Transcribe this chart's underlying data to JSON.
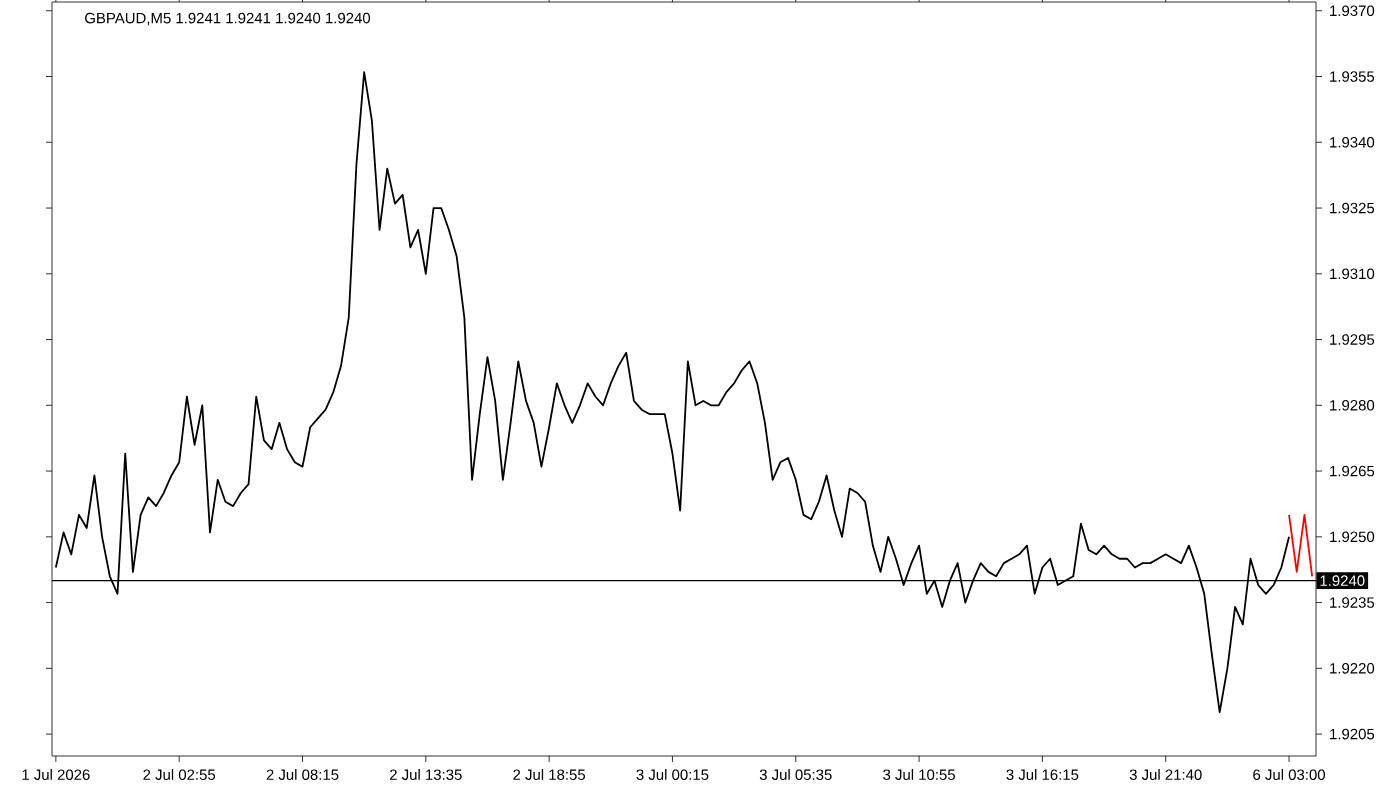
{
  "chart_data": {
    "type": "line",
    "title": "GBPAUD,M5  1.9241 1.9241 1.9240 1.9240",
    "categories": [
      "1 Jul 2026",
      null,
      null,
      null,
      null,
      null,
      null,
      null,
      null,
      null,
      null,
      null,
      null,
      null,
      null,
      null,
      "2 Jul 02:55",
      null,
      null,
      null,
      null,
      null,
      null,
      null,
      null,
      null,
      null,
      null,
      null,
      null,
      null,
      null,
      "2 Jul 08:15",
      null,
      null,
      null,
      null,
      null,
      null,
      null,
      null,
      null,
      null,
      null,
      null,
      null,
      null,
      null,
      "2 Jul 13:35",
      null,
      null,
      null,
      null,
      null,
      null,
      null,
      null,
      null,
      null,
      null,
      null,
      null,
      null,
      null,
      "2 Jul 18:55",
      null,
      null,
      null,
      null,
      null,
      null,
      null,
      null,
      null,
      null,
      null,
      null,
      null,
      null,
      null,
      "3 Jul 00:15",
      null,
      null,
      null,
      null,
      null,
      null,
      null,
      null,
      null,
      null,
      null,
      null,
      null,
      null,
      null,
      "3 Jul 05:35",
      null,
      null,
      null,
      null,
      null,
      null,
      null,
      null,
      null,
      null,
      null,
      null,
      null,
      null,
      null,
      "3 Jul 10:55",
      null,
      null,
      null,
      null,
      null,
      null,
      null,
      null,
      null,
      null,
      null,
      null,
      null,
      null,
      null,
      "3 Jul 16:15",
      null,
      null,
      null,
      null,
      null,
      null,
      null,
      null,
      null,
      null,
      null,
      null,
      null,
      null,
      null,
      "3 Jul 21:40",
      null,
      null,
      null,
      null,
      null,
      null,
      null,
      null,
      null,
      null,
      null,
      null,
      null,
      null,
      null,
      "6 Jul 03:00",
      null,
      null,
      null
    ],
    "ylim": [
      1.92,
      1.9372
    ],
    "yticks": [
      {
        "value": 1.9205,
        "label": "1.9205"
      },
      {
        "value": 1.922,
        "label": "1.9220"
      },
      {
        "value": 1.9235,
        "label": "1.9235"
      },
      {
        "value": 1.925,
        "label": "1.9250"
      },
      {
        "value": 1.9265,
        "label": "1.9265"
      },
      {
        "value": 1.928,
        "label": "1.9280"
      },
      {
        "value": 1.9295,
        "label": "1.9295"
      },
      {
        "value": 1.931,
        "label": "1.9310"
      },
      {
        "value": 1.9325,
        "label": "1.9325"
      },
      {
        "value": 1.934,
        "label": "1.9340"
      },
      {
        "value": 1.9355,
        "label": "1.9355"
      },
      {
        "value": 1.937,
        "label": "1.9370"
      }
    ],
    "ref_lines": [
      {
        "axis": "y",
        "value": 1.924,
        "label": "1.9240",
        "color": "#000000"
      }
    ],
    "series": [
      {
        "color": "#000000",
        "values": [
          1.9243,
          1.9251,
          1.9246,
          1.9255,
          1.9252,
          1.9264,
          1.925,
          1.9241,
          1.9237,
          1.9269,
          1.9242,
          1.9255,
          1.9259,
          1.9257,
          1.926,
          1.9264,
          1.9267,
          1.9282,
          1.9271,
          1.928,
          1.9251,
          1.9263,
          1.9258,
          1.9257,
          1.926,
          1.9262,
          1.9282,
          1.9272,
          1.927,
          1.9276,
          1.927,
          1.9267,
          1.9266,
          1.9275,
          1.9277,
          1.9279,
          1.9283,
          1.9289,
          1.93,
          1.9335,
          1.9356,
          1.9345,
          1.932,
          1.9334,
          1.9326,
          1.9328,
          1.9316,
          1.932,
          1.931,
          1.9325,
          1.9325,
          1.932,
          1.9314,
          1.93,
          1.9263,
          1.9278,
          1.9291,
          1.9281,
          1.9263,
          1.9276,
          1.929,
          1.9281,
          1.9276,
          1.9266,
          1.9275,
          1.9285,
          1.928,
          1.9276,
          1.928,
          1.9285,
          1.9282,
          1.928,
          1.9285,
          1.9289,
          1.9292,
          1.9281,
          1.9279,
          1.9278,
          1.9278,
          1.9278,
          1.9269,
          1.9256,
          1.929,
          1.928,
          1.9281,
          1.928,
          1.928,
          1.9283,
          1.9285,
          1.9288,
          1.929,
          1.9285,
          1.9276,
          1.9263,
          1.9267,
          1.9268,
          1.9263,
          1.9255,
          1.9254,
          1.9258,
          1.9264,
          1.9256,
          1.925,
          1.9261,
          1.926,
          1.9258,
          1.9248,
          1.9242,
          1.925,
          1.9245,
          1.9239,
          1.9244,
          1.9248,
          1.9237,
          1.924,
          1.9234,
          1.924,
          1.9244,
          1.9235,
          1.924,
          1.9244,
          1.9242,
          1.9241,
          1.9244,
          1.9245,
          1.9246,
          1.9248,
          1.9237,
          1.9243,
          1.9245,
          1.9239,
          1.924,
          1.9241,
          1.9253,
          1.9247,
          1.9246,
          1.9248,
          1.9246,
          1.9245,
          1.9245,
          1.9243,
          1.9244,
          1.9244,
          1.9245,
          1.9246,
          1.9245,
          1.9244,
          1.9248,
          1.9243,
          1.9237,
          1.9223,
          1.921,
          1.922,
          1.9234,
          1.923,
          1.9245,
          1.9239,
          1.9237,
          1.9239,
          1.9243,
          1.925,
          null,
          null,
          null
        ]
      },
      {
        "color": "#ff0000",
        "values": [
          null,
          null,
          null,
          null,
          null,
          null,
          null,
          null,
          null,
          null,
          null,
          null,
          null,
          null,
          null,
          null,
          null,
          null,
          null,
          null,
          null,
          null,
          null,
          null,
          null,
          null,
          null,
          null,
          null,
          null,
          null,
          null,
          null,
          null,
          null,
          null,
          null,
          null,
          null,
          null,
          null,
          null,
          null,
          null,
          null,
          null,
          null,
          null,
          null,
          null,
          null,
          null,
          null,
          null,
          null,
          null,
          null,
          null,
          null,
          null,
          null,
          null,
          null,
          null,
          null,
          null,
          null,
          null,
          null,
          null,
          null,
          null,
          null,
          null,
          null,
          null,
          null,
          null,
          null,
          null,
          null,
          null,
          null,
          null,
          null,
          null,
          null,
          null,
          null,
          null,
          null,
          null,
          null,
          null,
          null,
          null,
          null,
          null,
          null,
          null,
          null,
          null,
          null,
          null,
          null,
          null,
          null,
          null,
          null,
          null,
          null,
          null,
          null,
          null,
          null,
          null,
          null,
          null,
          null,
          null,
          null,
          null,
          null,
          null,
          null,
          null,
          null,
          null,
          null,
          null,
          null,
          null,
          null,
          null,
          null,
          null,
          null,
          null,
          null,
          null,
          null,
          null,
          null,
          null,
          null,
          null,
          null,
          null,
          null,
          null,
          null,
          null,
          null,
          null,
          null,
          null,
          null,
          null,
          null,
          null,
          1.9255,
          1.9242,
          1.9255,
          1.9241
        ]
      }
    ]
  }
}
